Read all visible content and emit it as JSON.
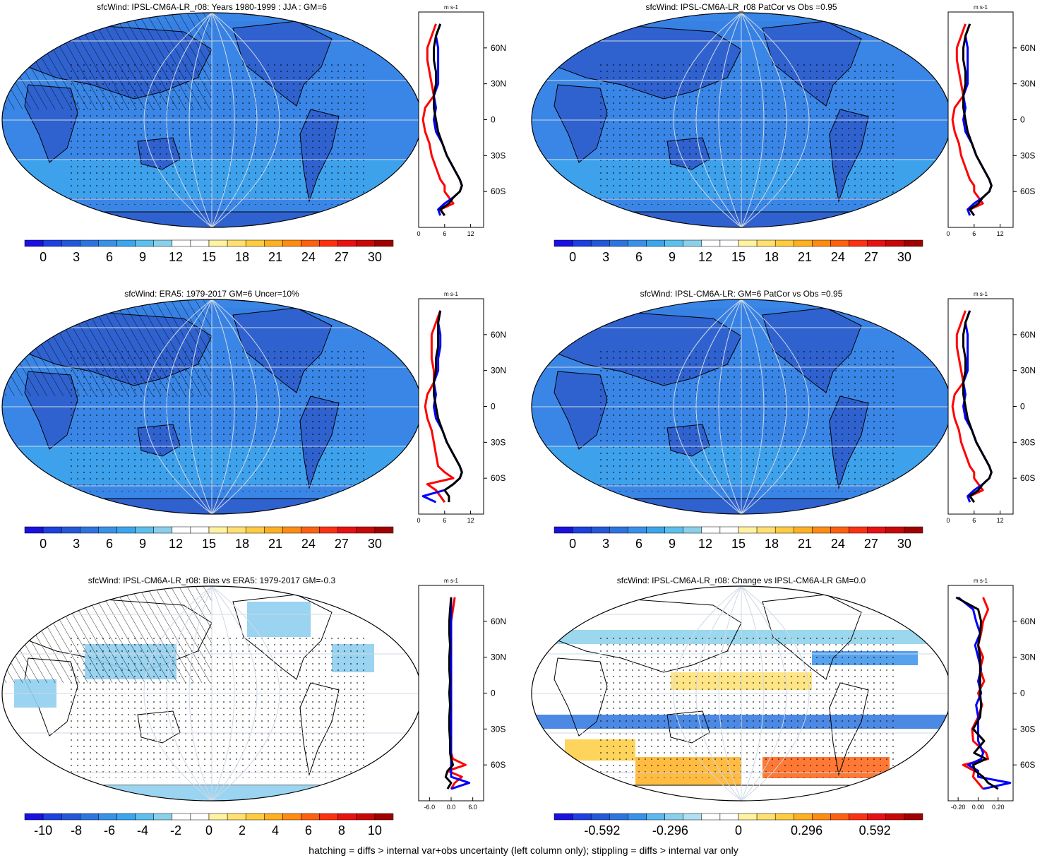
{
  "footnote": "hatching = diffs > internal var+obs uncertainty (left column only); stippling = diffs > internal var only",
  "colors": {
    "map_ocean": "#3a86e6",
    "map_land": "#2f62cf",
    "zonal_obs": "#ff0000",
    "zonal_model": "#0000ff",
    "zonal_mean": "#000000",
    "graticule": "#cfd8e6"
  },
  "latitude_ticks": [
    "60N",
    "30N",
    "0",
    "30S",
    "60S"
  ],
  "unit_label": "m s-1",
  "chart_data": [
    {
      "type": "heatmap",
      "id": "p1",
      "title": "sfcWind: IPSL-CM6A-LR_r08: Years 1980-1999 : JJA : GM=6",
      "map_style": "wind",
      "colorbar_labels": [
        "0",
        "3",
        "6",
        "9",
        "12",
        "15",
        "18",
        "21",
        "24",
        "27",
        "30"
      ],
      "zonal": {
        "xlim": [
          0,
          15
        ],
        "xtick_labels": [
          "0",
          "6",
          "12"
        ],
        "lat": [
          80,
          70,
          60,
          50,
          40,
          30,
          20,
          10,
          0,
          -10,
          -20,
          -30,
          -40,
          -50,
          -55,
          -60,
          -65,
          -70,
          -75,
          -80
        ],
        "series": [
          {
            "color": "red",
            "values": [
              4,
              3,
              2,
              2,
              2.5,
              3,
              3.5,
              1.5,
              1,
              1.5,
              2.5,
              3,
              4,
              5,
              6,
              6,
              7,
              8,
              5,
              6
            ]
          },
          {
            "color": "blue",
            "values": [
              5,
              4,
              4.5,
              4.5,
              4.5,
              4.5,
              3.5,
              4,
              3.5,
              4,
              5.5,
              6.5,
              8,
              9.5,
              10,
              9.5,
              8,
              6,
              4.5,
              5
            ]
          },
          {
            "color": "black",
            "values": [
              5,
              4,
              3.5,
              3.5,
              4,
              4,
              3.5,
              3.5,
              4,
              4.5,
              5.5,
              6.5,
              8,
              9.5,
              10,
              9.5,
              8,
              7,
              5,
              6
            ]
          }
        ]
      }
    },
    {
      "type": "heatmap",
      "id": "p2",
      "title": "sfcWind: IPSL-CM6A-LR_r08 PatCor vs Obs =0.95",
      "map_style": "wind",
      "colorbar_labels": [
        "0",
        "3",
        "6",
        "9",
        "12",
        "15",
        "18",
        "21",
        "24",
        "27",
        "30"
      ],
      "zonal": {
        "xlim": [
          0,
          15
        ],
        "xtick_labels": [
          "0",
          "6",
          "12"
        ],
        "lat": [
          80,
          70,
          60,
          50,
          40,
          30,
          20,
          10,
          0,
          -10,
          -20,
          -30,
          -40,
          -50,
          -55,
          -60,
          -65,
          -70,
          -75,
          -80
        ],
        "series": [
          {
            "color": "red",
            "values": [
              4,
              3,
              2,
              2,
              2.5,
              3,
              3.5,
              1.5,
              1,
              1.5,
              2.5,
              3,
              4,
              5,
              6,
              6,
              7,
              8,
              5,
              6
            ]
          },
          {
            "color": "blue",
            "values": [
              5,
              4,
              4.5,
              4.5,
              4.5,
              4.5,
              3.5,
              4,
              3.5,
              4,
              5.5,
              6.5,
              8,
              9.5,
              10,
              9.5,
              8,
              6,
              4.5,
              5
            ]
          },
          {
            "color": "black",
            "values": [
              5,
              4,
              3.5,
              3.5,
              4,
              4,
              3.5,
              3.5,
              4,
              4.5,
              5.5,
              6.5,
              8,
              9.5,
              10,
              9.5,
              8,
              7,
              5,
              6
            ]
          }
        ]
      }
    },
    {
      "type": "heatmap",
      "id": "p3",
      "title": "sfcWind: ERA5: 1979-2017 GM=6 Uncer=10%",
      "map_style": "wind",
      "colorbar_labels": [
        "0",
        "3",
        "6",
        "9",
        "12",
        "15",
        "18",
        "21",
        "24",
        "27",
        "30"
      ],
      "zonal": {
        "xlim": [
          0,
          15
        ],
        "xtick_labels": [
          "0",
          "6",
          "12"
        ],
        "lat": [
          80,
          70,
          60,
          50,
          40,
          30,
          20,
          10,
          0,
          -10,
          -20,
          -30,
          -40,
          -50,
          -55,
          -60,
          -65,
          -70,
          -75,
          -80
        ],
        "series": [
          {
            "color": "red",
            "values": [
              5,
              4,
              3,
              3,
              3,
              3.5,
              3.5,
              2,
              1.5,
              2,
              3,
              3.5,
              4,
              4.5,
              6,
              8,
              2,
              4,
              5,
              6
            ]
          },
          {
            "color": "blue",
            "values": [
              5,
              4.5,
              5,
              5,
              4.5,
              4.5,
              3.5,
              4,
              3.5,
              4,
              5.5,
              6.5,
              8,
              9.5,
              10,
              9.5,
              8,
              6,
              1,
              4
            ]
          },
          {
            "color": "black",
            "values": [
              5,
              4.5,
              4.5,
              4.5,
              4,
              4,
              3.5,
              3.5,
              4,
              4.5,
              5.5,
              6.5,
              8,
              9.5,
              10,
              9.5,
              8,
              6,
              7,
              7
            ]
          }
        ]
      }
    },
    {
      "type": "heatmap",
      "id": "p4",
      "title": "sfcWind: IPSL-CM6A-LR: GM=6 PatCor vs Obs =0.95",
      "map_style": "wind",
      "colorbar_labels": [
        "0",
        "3",
        "6",
        "9",
        "12",
        "15",
        "18",
        "21",
        "24",
        "27",
        "30"
      ],
      "zonal": {
        "xlim": [
          0,
          15
        ],
        "xtick_labels": [
          "0",
          "6",
          "12"
        ],
        "lat": [
          80,
          70,
          60,
          50,
          40,
          30,
          20,
          10,
          0,
          -10,
          -20,
          -30,
          -40,
          -50,
          -55,
          -60,
          -65,
          -70,
          -75,
          -80
        ],
        "series": [
          {
            "color": "red",
            "values": [
              4,
              3,
              2,
              2,
              2.5,
              3,
              3.5,
              1.5,
              1,
              1.5,
              2.5,
              3,
              4,
              5,
              6,
              6,
              7,
              8,
              5,
              6
            ]
          },
          {
            "color": "blue",
            "values": [
              5,
              4,
              4.5,
              4.5,
              4.5,
              4.5,
              3.5,
              4,
              3.5,
              4,
              5.5,
              6.5,
              8,
              9.5,
              10,
              9.5,
              8,
              6,
              4.5,
              5
            ]
          },
          {
            "color": "black",
            "values": [
              5,
              4,
              3.5,
              3.5,
              4,
              4,
              3.5,
              3.5,
              4,
              4.5,
              5.5,
              6.5,
              8,
              9.5,
              10,
              9.5,
              8,
              7,
              5,
              6
            ]
          }
        ]
      }
    },
    {
      "type": "heatmap",
      "id": "p5",
      "title": "sfcWind: IPSL-CM6A-LR_r08: Bias vs ERA5: 1979-2017 GM=-0.3",
      "map_style": "bias",
      "colorbar_labels": [
        "-10",
        "-8",
        "-6",
        "-4",
        "-2",
        "0",
        "2",
        "4",
        "6",
        "8",
        "10"
      ],
      "zonal": {
        "xlim": [
          -9,
          9
        ],
        "xtick_labels": [
          "-6.0",
          "0.0",
          "6.0"
        ],
        "lat": [
          80,
          70,
          60,
          50,
          40,
          30,
          20,
          10,
          0,
          -10,
          -20,
          -30,
          -40,
          -50,
          -55,
          -60,
          -65,
          -70,
          -75,
          -80
        ],
        "series": [
          {
            "color": "red",
            "values": [
              1,
              0.5,
              0,
              0,
              0,
              -0.3,
              -0.5,
              0,
              -0.3,
              0,
              -0.5,
              -0.5,
              0,
              0,
              0.5,
              4,
              -1,
              3,
              1,
              0
            ]
          },
          {
            "color": "blue",
            "values": [
              0,
              0,
              0,
              0,
              0,
              0,
              0,
              0,
              0,
              0,
              0,
              0,
              0,
              0,
              0,
              0,
              0,
              0,
              5,
              0
            ]
          },
          {
            "color": "black",
            "values": [
              0,
              -0.3,
              -0.5,
              -0.5,
              -0.3,
              -0.5,
              -0.5,
              -0.3,
              -0.5,
              -0.3,
              -0.5,
              -0.5,
              -0.3,
              -0.3,
              0,
              0.5,
              -1,
              -1.5,
              0,
              -1
            ]
          }
        ]
      }
    },
    {
      "type": "heatmap",
      "id": "p6",
      "title": "sfcWind: IPSL-CM6A-LR_r08: Change vs IPSL-CM6A-LR GM=0.0",
      "map_style": "change",
      "colorbar_labels": [
        "-0.592",
        "-0.296",
        "0",
        "0.296",
        "0.592"
      ],
      "zonal": {
        "xlim": [
          -0.3,
          0.35
        ],
        "xtick_labels": [
          "-0.20",
          "0.00",
          "0.20"
        ],
        "lat": [
          80,
          70,
          60,
          50,
          40,
          30,
          20,
          10,
          0,
          -10,
          -20,
          -30,
          -40,
          -50,
          -55,
          -60,
          -65,
          -70,
          -75,
          -80
        ],
        "series": [
          {
            "color": "red",
            "values": [
              0.05,
              0.1,
              0.05,
              0.03,
              0,
              0.05,
              0.02,
              0.06,
              0,
              0.04,
              0,
              -0.06,
              -0.05,
              0.08,
              0.1,
              -0.15,
              -0.04,
              -0.05,
              0,
              0.05
            ]
          },
          {
            "color": "blue",
            "values": [
              -0.2,
              -0.05,
              -0.02,
              0.02,
              -0.03,
              0,
              0.03,
              0,
              0.03,
              -0.02,
              0,
              0,
              0,
              0.05,
              0.03,
              -0.1,
              0,
              0,
              0.32,
              0.05
            ]
          },
          {
            "color": "black",
            "values": [
              -0.22,
              0,
              0.03,
              0.02,
              0,
              0.02,
              0.02,
              0.02,
              0.02,
              0.03,
              0.02,
              -0.05,
              0.06,
              -0.04,
              0.08,
              -0.05,
              -0.03,
              0.05,
              0.1,
              0.2
            ]
          }
        ]
      }
    }
  ]
}
